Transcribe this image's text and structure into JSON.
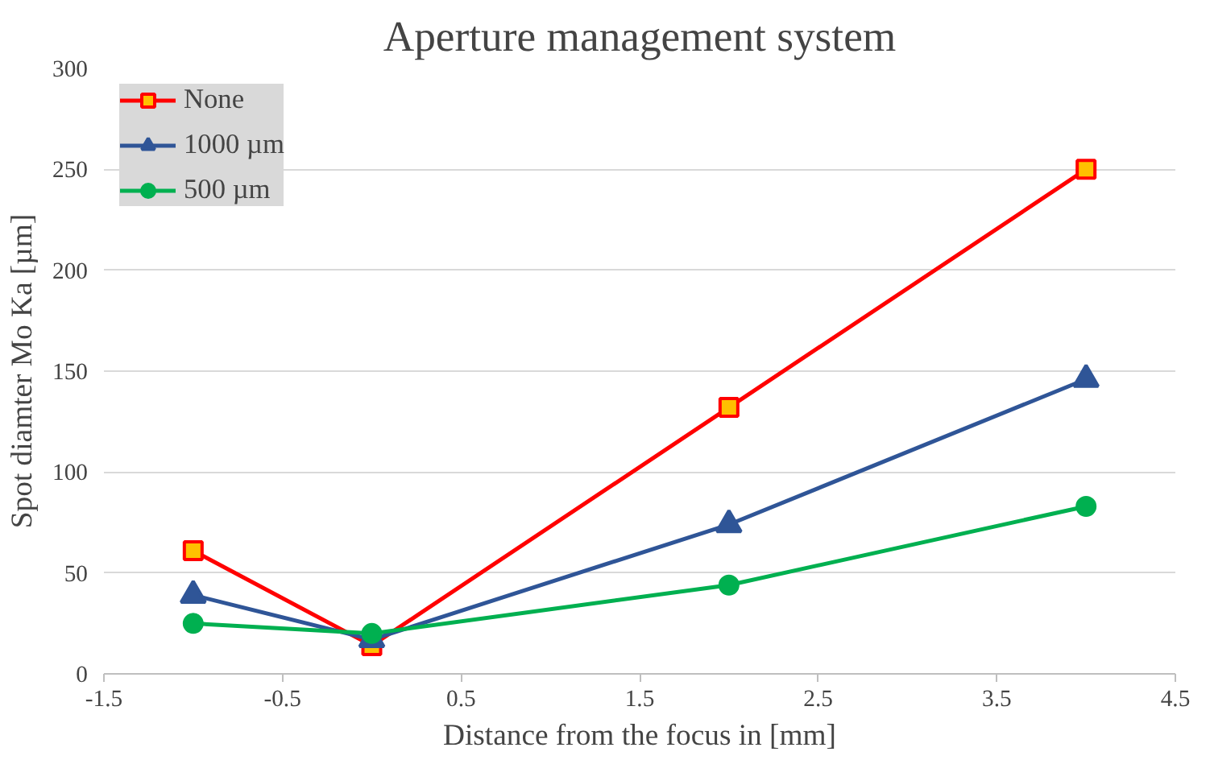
{
  "chart_data": {
    "type": "line",
    "title": "Aperture management system",
    "xlabel": "Distance from the focus in [mm]",
    "ylabel": "Spot diamter Mo Ka [µm]",
    "x": [
      -1,
      0,
      2,
      4
    ],
    "series": [
      {
        "name": "None",
        "color": "#ff0000",
        "marker": "square",
        "values": [
          61,
          14,
          132,
          250
        ]
      },
      {
        "name": "1000 µm",
        "color": "#2f5597",
        "marker": "triangle",
        "values": [
          39,
          17,
          74,
          146
        ]
      },
      {
        "name": "500 µm",
        "color": "#00b050",
        "marker": "circle",
        "values": [
          25,
          20,
          44,
          83
        ]
      }
    ],
    "xlim": [
      -1.5,
      4.5
    ],
    "xticks": [
      -1.5,
      -0.5,
      0.5,
      1.5,
      2.5,
      3.5,
      4.5
    ],
    "ylim": [
      0,
      300
    ],
    "yticks": [
      0,
      50,
      100,
      150,
      200,
      250,
      300
    ],
    "grid": "y",
    "legend": "top left",
    "line_style": "solid"
  }
}
